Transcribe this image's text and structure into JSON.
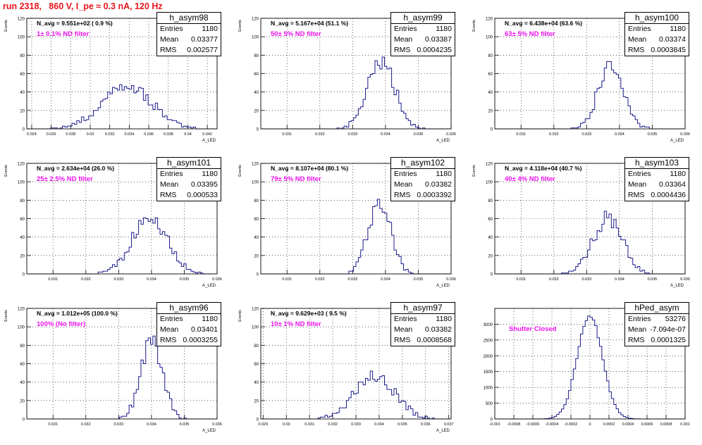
{
  "page": {
    "title": "run 2318,   860 V, I_pe ≈ 0.3 nA, 120 Hz",
    "title_color": "#e8141b"
  },
  "colors": {
    "histogram": "#1c1c8c",
    "annotation": "#ee11ee",
    "grid": "#000000"
  },
  "chart_data": [
    {
      "type": "histogram",
      "name": "h_asym98",
      "entries": "1180",
      "mean": "0.03377",
      "rms": "0.002577",
      "n_avg": "N_avg = 9.551e+02 ( 0.9 %)",
      "filter": "1± 0.1% ND filter",
      "xlim": [
        0.0235,
        0.043
      ],
      "ylim": [
        0,
        120
      ],
      "xticks": [
        "0.024",
        "0.026",
        "0.028",
        "0.03",
        "0.032",
        "0.034",
        "0.036",
        "0.038",
        "0.04",
        "0.042"
      ],
      "xtick_values": [
        0.024,
        0.026,
        0.028,
        0.03,
        0.032,
        0.034,
        0.036,
        0.038,
        0.04,
        0.042
      ],
      "yticks": [
        "0",
        "20",
        "40",
        "60",
        "80",
        "100",
        "120"
      ],
      "ylabel": "Events",
      "xlabel": "A_LED",
      "mean_value": 0.03377,
      "sigma": 0.002577,
      "peak": 46,
      "seed": 98
    },
    {
      "type": "histogram",
      "name": "h_asym99",
      "entries": "1180",
      "mean": "0.03387",
      "rms": "0.0004235",
      "n_avg": "N_avg = 5.167e+04 (51.1 %)",
      "filter": "50± 5% ND filter",
      "xlim": [
        0.0302,
        0.036
      ],
      "ylim": [
        0,
        120
      ],
      "xticks": [
        "0.031",
        "0.032",
        "0.033",
        "0.034",
        "0.035",
        "0.036"
      ],
      "xtick_values": [
        0.031,
        0.032,
        0.033,
        0.034,
        0.035,
        0.036
      ],
      "yticks": [
        "0",
        "20",
        "40",
        "60",
        "80",
        "100",
        "120"
      ],
      "ylabel": "Events",
      "xlabel": "A_LED",
      "mean_value": 0.03387,
      "sigma": 0.0004235,
      "peak": 73,
      "seed": 99
    },
    {
      "type": "histogram",
      "name": "h_asym100",
      "entries": "1180",
      "mean": "0.03374",
      "rms": "0.0003845",
      "n_avg": "N_avg = 6.438e+04 (63.6 %)",
      "filter": "63± 5% ND filter",
      "xlim": [
        0.0302,
        0.036
      ],
      "ylim": [
        0,
        120
      ],
      "xticks": [
        "0.031",
        "0.032",
        "0.033",
        "0.034",
        "0.035",
        "0.036"
      ],
      "xtick_values": [
        0.031,
        0.032,
        0.033,
        0.034,
        0.035,
        0.036
      ],
      "yticks": [
        "0",
        "20",
        "40",
        "60",
        "80",
        "100",
        "120"
      ],
      "ylabel": "Events",
      "xlabel": "A_LED",
      "mean_value": 0.03374,
      "sigma": 0.0003845,
      "peak": 69,
      "seed": 100
    },
    {
      "type": "histogram",
      "name": "h_asym101",
      "entries": "1180",
      "mean": "0.03395",
      "rms": "0.000533",
      "n_avg": "N_avg = 2.634e+04 (26.0 %)",
      "filter": "25± 2.5% ND filter",
      "xlim": [
        0.0302,
        0.036
      ],
      "ylim": [
        0,
        120
      ],
      "xticks": [
        "0.031",
        "0.032",
        "0.033",
        "0.034",
        "0.035",
        "0.036"
      ],
      "xtick_values": [
        0.031,
        0.032,
        0.033,
        0.034,
        0.035,
        0.036
      ],
      "yticks": [
        "0",
        "20",
        "40",
        "60",
        "80",
        "100",
        "120"
      ],
      "ylabel": "Events",
      "xlabel": "A_LED",
      "mean_value": 0.03395,
      "sigma": 0.000533,
      "peak": 62,
      "seed": 101
    },
    {
      "type": "histogram",
      "name": "h_asym102",
      "entries": "1180",
      "mean": "0.03382",
      "rms": "0.0003392",
      "n_avg": "N_avg = 8.107e+04 (80.1 %)",
      "filter": "79± 5% ND filter",
      "xlim": [
        0.0302,
        0.036
      ],
      "ylim": [
        0,
        120
      ],
      "xticks": [
        "0.031",
        "0.032",
        "0.033",
        "0.034",
        "0.035",
        "0.036"
      ],
      "xtick_values": [
        0.031,
        0.032,
        0.033,
        0.034,
        0.035,
        0.036
      ],
      "yticks": [
        "0",
        "20",
        "40",
        "60",
        "80",
        "100",
        "120"
      ],
      "ylabel": "Events",
      "xlabel": "A_LED",
      "mean_value": 0.03382,
      "sigma": 0.0003392,
      "peak": 79,
      "seed": 102
    },
    {
      "type": "histogram",
      "name": "h_asym103",
      "entries": "1180",
      "mean": "0.03364",
      "rms": "0.0004436",
      "n_avg": "N_avg = 4.118e+04 (40.7 %)",
      "filter": "40± 4% ND filter",
      "xlim": [
        0.0302,
        0.036
      ],
      "ylim": [
        0,
        120
      ],
      "xticks": [
        "0.031",
        "0.032",
        "0.033",
        "0.034",
        "0.035",
        "0.036"
      ],
      "xtick_values": [
        0.031,
        0.032,
        0.033,
        0.034,
        0.035,
        0.036
      ],
      "yticks": [
        "0",
        "20",
        "40",
        "60",
        "80",
        "100",
        "120"
      ],
      "ylabel": "Events",
      "xlabel": "A_LED",
      "mean_value": 0.03364,
      "sigma": 0.0004436,
      "peak": 61,
      "seed": 103
    },
    {
      "type": "histogram",
      "name": "h_asym96",
      "entries": "1180",
      "mean": "0.03401",
      "rms": "0.0003255",
      "n_avg": "N_avg = 1.012e+05 (100.0 %)",
      "filter": "100% (No filter)",
      "xlim": [
        0.0302,
        0.036
      ],
      "ylim": [
        0,
        120
      ],
      "xticks": [
        "0.031",
        "0.032",
        "0.033",
        "0.034",
        "0.035",
        "0.036"
      ],
      "xtick_values": [
        0.031,
        0.032,
        0.033,
        0.034,
        0.035,
        0.036
      ],
      "yticks": [
        "0",
        "20",
        "40",
        "60",
        "80",
        "100",
        "120"
      ],
      "ylabel": "Events",
      "xlabel": "A_LED",
      "mean_value": 0.03401,
      "sigma": 0.0003255,
      "peak": 86,
      "seed": 96
    },
    {
      "type": "histogram",
      "name": "h_asym97",
      "entries": "1180",
      "mean": "0.03382",
      "rms": "0.0008568",
      "n_avg": "N_avg = 9.629e+03 ( 9.5 %)",
      "filter": "10± 1% ND filter",
      "xlim": [
        0.0289,
        0.0371
      ],
      "ylim": [
        0,
        120
      ],
      "xticks": [
        "0.029",
        "0.03",
        "0.031",
        "0.032",
        "0.033",
        "0.034",
        "0.035",
        "0.036",
        "0.037"
      ],
      "xtick_values": [
        0.029,
        0.03,
        0.031,
        0.032,
        0.033,
        0.034,
        0.035,
        0.036,
        0.037
      ],
      "yticks": [
        "0",
        "20",
        "40",
        "60",
        "80",
        "100",
        "120"
      ],
      "ylabel": "Events",
      "xlabel": "A_LED",
      "mean_value": 0.03382,
      "sigma": 0.0008568,
      "peak": 47,
      "seed": 97
    },
    {
      "type": "histogram",
      "name": "hPed_asym",
      "entries": "53276",
      "mean": "-7.094e-07",
      "rms": "0.0001325",
      "n_avg": "",
      "filter": "Shutter Closed",
      "xlim": [
        -0.001,
        0.001
      ],
      "ylim": [
        0,
        3500
      ],
      "xticks": [
        "-0.001",
        "-0.0008",
        "-0.0006",
        "-0.0004",
        "-0.0002",
        "0",
        "0.0002",
        "0.0004",
        "0.0006",
        "0.0008",
        "0.001"
      ],
      "xtick_values": [
        -0.001,
        -0.0008,
        -0.0006,
        -0.0004,
        -0.0002,
        0,
        0.0002,
        0.0004,
        0.0006,
        0.0008,
        0.001
      ],
      "yticks": [
        "0",
        "500",
        "1000",
        "1500",
        "2000",
        "2500",
        "3000"
      ],
      "ylabel": "",
      "xlabel": "",
      "mean_value": -7.094e-07,
      "sigma": 0.0001325,
      "peak": 3270,
      "seed": 7
    }
  ]
}
